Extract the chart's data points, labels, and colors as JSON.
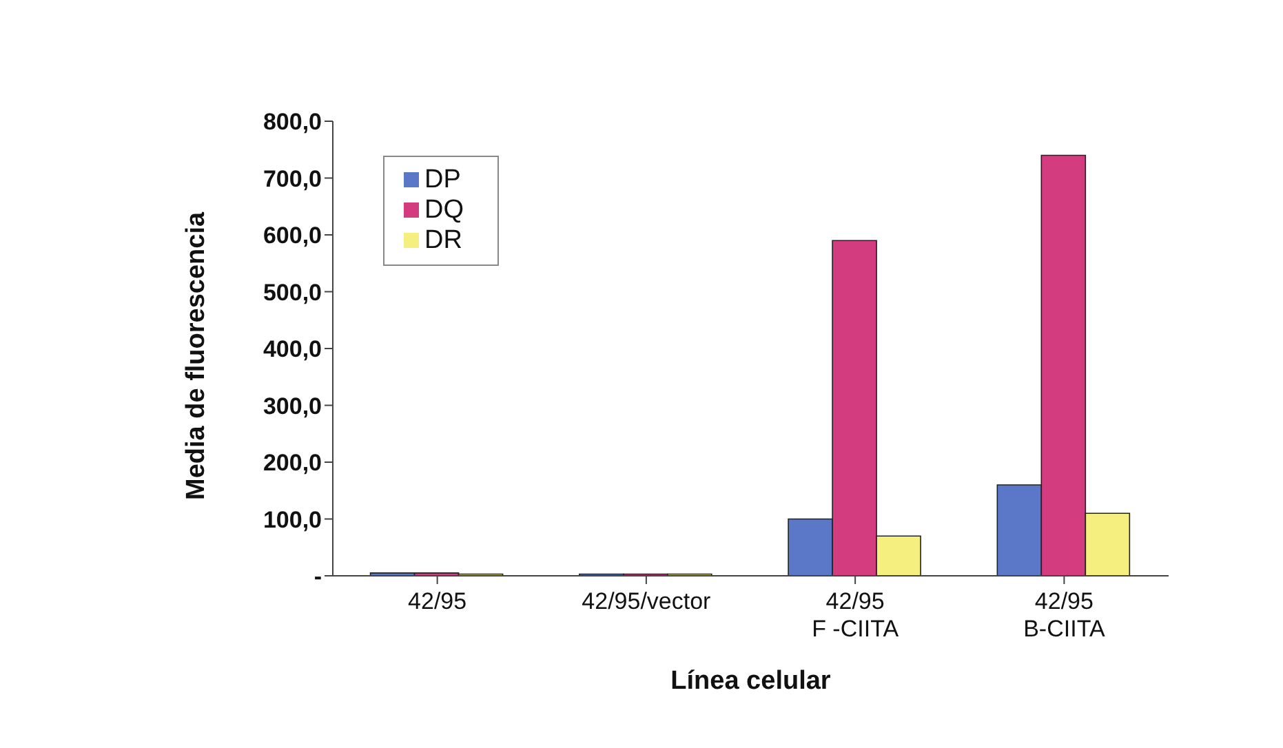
{
  "chart_data": {
    "type": "bar",
    "xlabel": "Línea celular",
    "ylabel": "Media de fluorescencia",
    "categories": [
      "42/95",
      "42/95/vector",
      "42/95\nF -CIITA",
      "42/95\nB-CIITA"
    ],
    "series": [
      {
        "name": "DP",
        "color": "#5b78c8",
        "values": [
          5,
          3,
          100,
          160
        ]
      },
      {
        "name": "DQ",
        "color": "#d43c80",
        "values": [
          5,
          3,
          590,
          740
        ]
      },
      {
        "name": "DR",
        "color": "#f5ef80",
        "values": [
          3,
          3,
          70,
          110
        ]
      }
    ],
    "ylim": [
      0,
      800
    ],
    "yticks": [
      {
        "value": 0,
        "label": "-"
      },
      {
        "value": 100,
        "label": "100,0"
      },
      {
        "value": 200,
        "label": "200,0"
      },
      {
        "value": 300,
        "label": "300,0"
      },
      {
        "value": 400,
        "label": "400,0"
      },
      {
        "value": 500,
        "label": "500,0"
      },
      {
        "value": 600,
        "label": "600,0"
      },
      {
        "value": 700,
        "label": "700,0"
      },
      {
        "value": 800,
        "label": "800,0"
      }
    ],
    "grid": false,
    "legend": "top left"
  }
}
